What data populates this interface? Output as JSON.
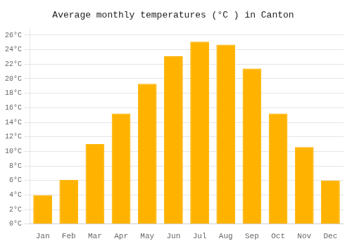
{
  "chart_data": {
    "type": "bar",
    "title": "Average monthly temperatures (°C ) in Canton",
    "categories": [
      "Jan",
      "Feb",
      "Mar",
      "Apr",
      "May",
      "Jun",
      "Jul",
      "Aug",
      "Sep",
      "Oct",
      "Nov",
      "Dec"
    ],
    "values": [
      4.0,
      6.1,
      11.0,
      15.2,
      19.3,
      23.1,
      25.1,
      24.7,
      21.4,
      15.2,
      10.6,
      6.0
    ],
    "color": "#FFB300",
    "ylim": [
      0,
      27
    ],
    "yticks": [
      {
        "value": 0,
        "label": "0°C"
      },
      {
        "value": 2,
        "label": "2°C"
      },
      {
        "value": 4,
        "label": "4°C"
      },
      {
        "value": 6,
        "label": "6°C"
      },
      {
        "value": 8,
        "label": "8°C"
      },
      {
        "value": 10,
        "label": "10°C"
      },
      {
        "value": 12,
        "label": "12°C"
      },
      {
        "value": 14,
        "label": "14°C"
      },
      {
        "value": 16,
        "label": "16°C"
      },
      {
        "value": 18,
        "label": "18°C"
      },
      {
        "value": 20,
        "label": "20°C"
      },
      {
        "value": 22,
        "label": "22°C"
      },
      {
        "value": 24,
        "label": "24°C"
      },
      {
        "value": 26,
        "label": "26°C"
      }
    ],
    "grid": true
  }
}
